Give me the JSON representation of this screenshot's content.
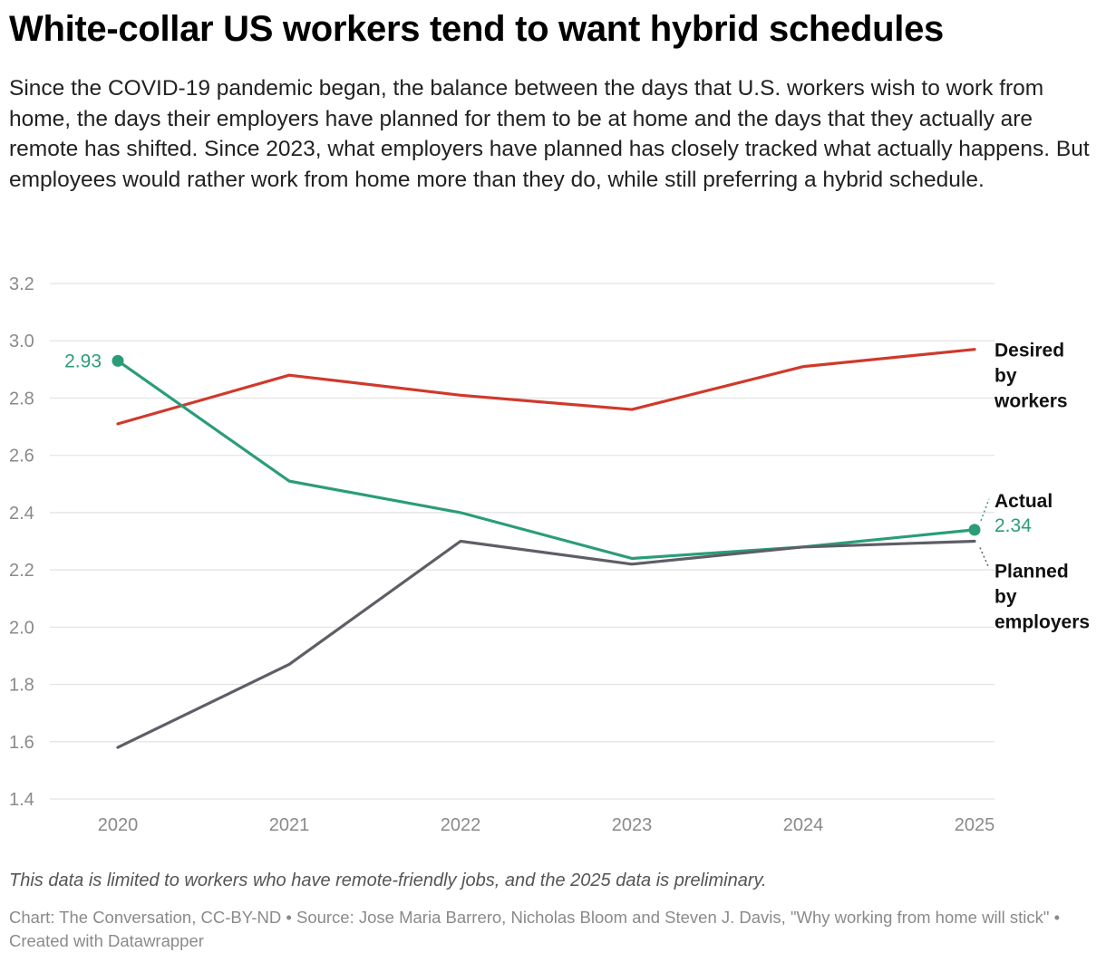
{
  "title": "White-collar US workers tend to want hybrid schedules",
  "subtitle": "Since the COVID-19 pandemic began, the balance between the days that U.S. workers wish to work from home, the days their employers have planned for them to be at home and the days that they actually are remote has shifted. Since 2023, what employers have planned has closely tracked what actually happens. But employees would rather work from home more than they do, while still preferring a hybrid schedule.",
  "footnote": "This data is limited to workers who have remote-friendly jobs, and the 2025 data is preliminary.",
  "credits": "Chart: The Conversation, CC-BY-ND • Source: Jose Maria Barrero, Nicholas Bloom and Steven J. Davis, \"Why working from home will stick\" • Created with Datawrapper",
  "chart_data": {
    "type": "line",
    "x": [
      "2020",
      "2021",
      "2022",
      "2023",
      "2024",
      "2025"
    ],
    "ylim": [
      1.4,
      3.2
    ],
    "yticks": [
      "1.4",
      "1.6",
      "1.8",
      "2.0",
      "2.2",
      "2.4",
      "2.6",
      "2.8",
      "3.0",
      "3.2"
    ],
    "grid": true,
    "series": [
      {
        "name": "Desired by workers",
        "label_lines": [
          "Desired",
          "by",
          "workers"
        ],
        "color": "#d0392b",
        "values": [
          2.71,
          2.88,
          2.81,
          2.76,
          2.91,
          2.97
        ]
      },
      {
        "name": "Actual",
        "label_lines": [
          "Actual"
        ],
        "color": "#2a9d78",
        "values": [
          2.93,
          2.51,
          2.4,
          2.24,
          2.28,
          2.34
        ],
        "start_label": "2.93",
        "end_label": "2.34"
      },
      {
        "name": "Planned by employers",
        "label_lines": [
          "Planned",
          "by",
          "employers"
        ],
        "color": "#5e5e66",
        "values": [
          1.58,
          1.87,
          2.3,
          2.22,
          2.28,
          2.3
        ]
      }
    ]
  }
}
